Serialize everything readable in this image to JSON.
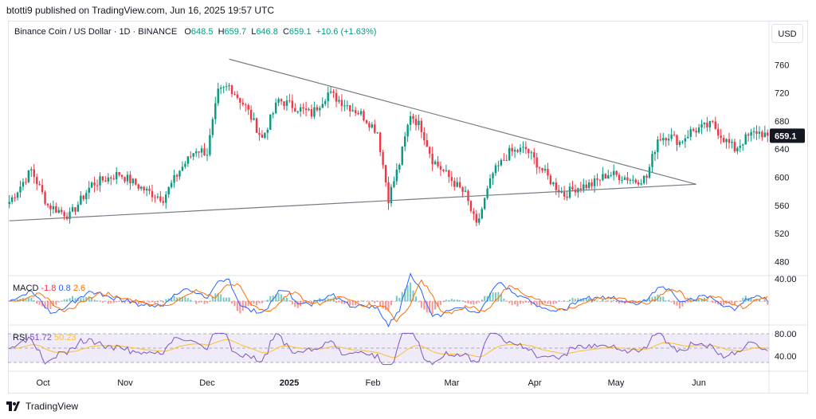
{
  "publish_line": "btotti9 published on TradingView.com, Jun 16, 2025 19:57 UTC",
  "symbol_line": "Binance Coin / US Dollar · 1D · BINANCE",
  "ohlc": {
    "o_label": "O",
    "o": "648.5",
    "h_label": "H",
    "h": "659.7",
    "l_label": "L",
    "l": "646.8",
    "c_label": "C",
    "c": "659.1",
    "change": "+10.6 (+1.63%)"
  },
  "currency_button": "USD",
  "last_price_label": "659.1",
  "macd_legend": {
    "name": "MACD",
    "v1": "-1.8",
    "v2": "0.8",
    "v3": "2.6"
  },
  "rsi_legend": {
    "name": "RSI",
    "v1": "51.72",
    "v2": "50.23"
  },
  "brand": "TradingView",
  "colors": {
    "up": "#089981",
    "down": "#f23645",
    "macd": "#2962ff",
    "signal": "#ff6d00",
    "rsi": "#7e57c2",
    "rsi_ma": "#fbc02d"
  },
  "chart_data": {
    "type": "candlestick",
    "x_ticks": [
      "Oct",
      "Nov",
      "Dec",
      "2025",
      "Feb",
      "Mar",
      "Apr",
      "May",
      "Jun"
    ],
    "price_ticks": [
      760,
      720,
      680,
      640,
      600,
      560,
      520,
      480
    ],
    "macd_ticks": [
      40
    ],
    "rsi_ticks": [
      80,
      40
    ],
    "ylim": [
      460,
      800
    ],
    "keypoints": [
      {
        "i": 0,
        "p": 565
      },
      {
        "i": 8,
        "p": 610
      },
      {
        "i": 14,
        "p": 560
      },
      {
        "i": 22,
        "p": 545
      },
      {
        "i": 30,
        "p": 590
      },
      {
        "i": 40,
        "p": 605
      },
      {
        "i": 50,
        "p": 580
      },
      {
        "i": 56,
        "p": 570
      },
      {
        "i": 62,
        "p": 610
      },
      {
        "i": 68,
        "p": 640
      },
      {
        "i": 72,
        "p": 635
      },
      {
        "i": 76,
        "p": 720
      },
      {
        "i": 80,
        "p": 730
      },
      {
        "i": 86,
        "p": 700
      },
      {
        "i": 92,
        "p": 655
      },
      {
        "i": 98,
        "p": 710
      },
      {
        "i": 104,
        "p": 700
      },
      {
        "i": 110,
        "p": 690
      },
      {
        "i": 116,
        "p": 720
      },
      {
        "i": 122,
        "p": 705
      },
      {
        "i": 128,
        "p": 690
      },
      {
        "i": 134,
        "p": 665
      },
      {
        "i": 138,
        "p": 570
      },
      {
        "i": 142,
        "p": 620
      },
      {
        "i": 146,
        "p": 690
      },
      {
        "i": 150,
        "p": 670
      },
      {
        "i": 154,
        "p": 625
      },
      {
        "i": 160,
        "p": 600
      },
      {
        "i": 166,
        "p": 575
      },
      {
        "i": 170,
        "p": 530
      },
      {
        "i": 176,
        "p": 605
      },
      {
        "i": 182,
        "p": 635
      },
      {
        "i": 188,
        "p": 640
      },
      {
        "i": 194,
        "p": 610
      },
      {
        "i": 198,
        "p": 590
      },
      {
        "i": 202,
        "p": 575
      },
      {
        "i": 206,
        "p": 585
      },
      {
        "i": 212,
        "p": 590
      },
      {
        "i": 218,
        "p": 605
      },
      {
        "i": 224,
        "p": 600
      },
      {
        "i": 228,
        "p": 595
      },
      {
        "i": 232,
        "p": 600
      },
      {
        "i": 236,
        "p": 655
      },
      {
        "i": 240,
        "p": 660
      },
      {
        "i": 244,
        "p": 650
      },
      {
        "i": 248,
        "p": 665
      },
      {
        "i": 252,
        "p": 670
      },
      {
        "i": 256,
        "p": 675
      },
      {
        "i": 260,
        "p": 655
      },
      {
        "i": 264,
        "p": 640
      },
      {
        "i": 268,
        "p": 655
      },
      {
        "i": 272,
        "p": 665
      },
      {
        "i": 276,
        "p": 659
      }
    ],
    "trendlines": [
      {
        "from": {
          "i": 80,
          "p": 768
        },
        "to": {
          "i": 250,
          "p": 590
        }
      },
      {
        "from": {
          "i": 0,
          "p": 538
        },
        "to": {
          "i": 250,
          "p": 590
        }
      }
    ]
  }
}
